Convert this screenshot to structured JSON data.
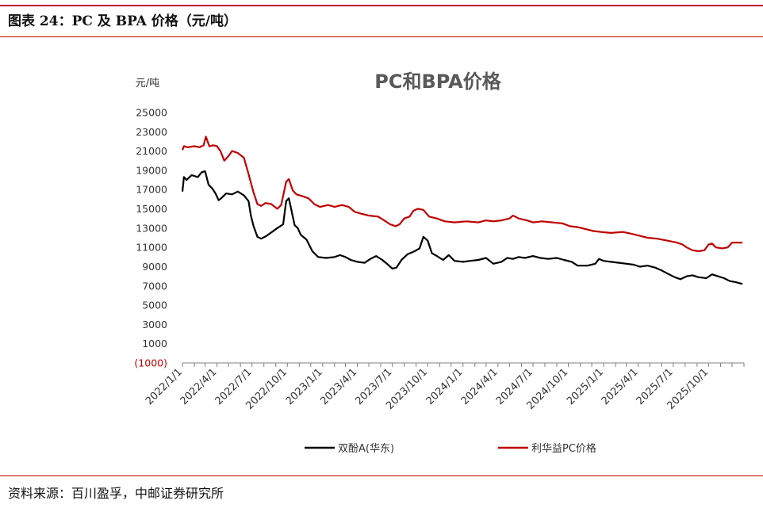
{
  "figure": {
    "title": "图表 24：PC 及 BPA 价格（元/吨）",
    "source": "资料来源：百川盈孚，中邮证券研究所"
  },
  "colors": {
    "bpa": "#000000",
    "pc": "#c00000",
    "accent": "#c00000"
  },
  "chart_data": {
    "type": "line",
    "title": "PC和BPA价格",
    "ylabel": "元/吨",
    "xlabel": "",
    "ylim": [
      -1000,
      25000
    ],
    "yticks": [
      {
        "v": 25000,
        "label": "25000"
      },
      {
        "v": 23000,
        "label": "23000"
      },
      {
        "v": 21000,
        "label": "21000"
      },
      {
        "v": 19000,
        "label": "19000"
      },
      {
        "v": 17000,
        "label": "17000"
      },
      {
        "v": 15000,
        "label": "15000"
      },
      {
        "v": 13000,
        "label": "13000"
      },
      {
        "v": 11000,
        "label": "11000"
      },
      {
        "v": 9000,
        "label": "9000"
      },
      {
        "v": 7000,
        "label": "7000"
      },
      {
        "v": 5000,
        "label": "5000"
      },
      {
        "v": 3000,
        "label": "3000"
      },
      {
        "v": 1000,
        "label": "1000"
      },
      {
        "v": -1000,
        "label": "(1000)"
      }
    ],
    "xlim": [
      "2022-01-01",
      "2026-01-01"
    ],
    "xticks": [
      "2022/1/1",
      "2022/4/1",
      "2022/7/1",
      "2022/10/1",
      "2023/1/1",
      "2023/4/1",
      "2023/7/1",
      "2023/10/1",
      "2024/1/1",
      "2024/4/1",
      "2024/7/1",
      "2024/10/1",
      "2025/1/1",
      "2025/4/1",
      "2025/7/1",
      "2025/10/1"
    ],
    "legend": "bottom",
    "grid": false,
    "series": [
      {
        "name": "双酚A(华东)",
        "key": "bpa",
        "points": [
          [
            "2022-01-01",
            16800
          ],
          [
            "2022-01-05",
            18300
          ],
          [
            "2022-01-12",
            18000
          ],
          [
            "2022-01-25",
            18500
          ],
          [
            "2022-02-10",
            18300
          ],
          [
            "2022-02-20",
            18800
          ],
          [
            "2022-03-01",
            18900
          ],
          [
            "2022-03-10",
            17500
          ],
          [
            "2022-03-20",
            17100
          ],
          [
            "2022-03-28",
            16600
          ],
          [
            "2022-04-05",
            15900
          ],
          [
            "2022-04-12",
            16100
          ],
          [
            "2022-04-25",
            16600
          ],
          [
            "2022-05-10",
            16500
          ],
          [
            "2022-05-25",
            16800
          ],
          [
            "2022-06-10",
            16400
          ],
          [
            "2022-06-22",
            15800
          ],
          [
            "2022-06-28",
            14300
          ],
          [
            "2022-07-05",
            13200
          ],
          [
            "2022-07-15",
            12100
          ],
          [
            "2022-07-25",
            11900
          ],
          [
            "2022-08-08",
            12200
          ],
          [
            "2022-08-22",
            12600
          ],
          [
            "2022-09-05",
            13000
          ],
          [
            "2022-09-20",
            13400
          ],
          [
            "2022-09-28",
            15800
          ],
          [
            "2022-10-05",
            16100
          ],
          [
            "2022-10-12",
            14800
          ],
          [
            "2022-10-20",
            13300
          ],
          [
            "2022-10-28",
            13000
          ],
          [
            "2022-11-05",
            12300
          ],
          [
            "2022-11-20",
            11800
          ],
          [
            "2022-12-05",
            10600
          ],
          [
            "2022-12-20",
            10000
          ],
          [
            "2023-01-10",
            9900
          ],
          [
            "2023-02-01",
            10000
          ],
          [
            "2023-02-15",
            10200
          ],
          [
            "2023-03-01",
            10000
          ],
          [
            "2023-03-15",
            9700
          ],
          [
            "2023-04-01",
            9500
          ],
          [
            "2023-04-20",
            9400
          ],
          [
            "2023-05-05",
            9800
          ],
          [
            "2023-05-20",
            10100
          ],
          [
            "2023-06-05",
            9700
          ],
          [
            "2023-06-20",
            9200
          ],
          [
            "2023-07-01",
            8800
          ],
          [
            "2023-07-12",
            8900
          ],
          [
            "2023-07-25",
            9700
          ],
          [
            "2023-08-10",
            10300
          ],
          [
            "2023-08-28",
            10600
          ],
          [
            "2023-09-10",
            10900
          ],
          [
            "2023-09-20",
            12100
          ],
          [
            "2023-10-01",
            11700
          ],
          [
            "2023-10-12",
            10400
          ],
          [
            "2023-10-25",
            10100
          ],
          [
            "2023-11-10",
            9700
          ],
          [
            "2023-11-25",
            10200
          ],
          [
            "2023-12-10",
            9600
          ],
          [
            "2024-01-01",
            9500
          ],
          [
            "2024-01-20",
            9600
          ],
          [
            "2024-02-10",
            9700
          ],
          [
            "2024-03-01",
            9900
          ],
          [
            "2024-03-20",
            9300
          ],
          [
            "2024-04-10",
            9500
          ],
          [
            "2024-04-25",
            9900
          ],
          [
            "2024-05-10",
            9800
          ],
          [
            "2024-05-25",
            10000
          ],
          [
            "2024-06-10",
            9900
          ],
          [
            "2024-07-01",
            10100
          ],
          [
            "2024-07-20",
            9900
          ],
          [
            "2024-08-10",
            9800
          ],
          [
            "2024-09-01",
            9900
          ],
          [
            "2024-09-20",
            9700
          ],
          [
            "2024-10-10",
            9500
          ],
          [
            "2024-10-25",
            9100
          ],
          [
            "2024-11-20",
            9100
          ],
          [
            "2024-12-10",
            9300
          ],
          [
            "2024-12-20",
            9800
          ],
          [
            "2025-01-01",
            9600
          ],
          [
            "2025-01-20",
            9500
          ],
          [
            "2025-02-10",
            9400
          ],
          [
            "2025-03-01",
            9300
          ],
          [
            "2025-03-20",
            9200
          ],
          [
            "2025-04-05",
            9000
          ],
          [
            "2025-04-25",
            9100
          ],
          [
            "2025-05-15",
            8900
          ],
          [
            "2025-06-01",
            8600
          ],
          [
            "2025-06-20",
            8200
          ],
          [
            "2025-07-05",
            7900
          ],
          [
            "2025-07-20",
            7700
          ],
          [
            "2025-08-05",
            8000
          ],
          [
            "2025-08-20",
            8100
          ],
          [
            "2025-09-05",
            7900
          ],
          [
            "2025-09-25",
            7800
          ],
          [
            "2025-10-10",
            8200
          ],
          [
            "2025-10-25",
            8000
          ],
          [
            "2025-11-10",
            7800
          ],
          [
            "2025-11-25",
            7500
          ],
          [
            "2025-12-10",
            7400
          ],
          [
            "2025-12-28",
            7200
          ]
        ]
      },
      {
        "name": "利华益PC价格",
        "key": "pc",
        "points": [
          [
            "2022-01-01",
            21100
          ],
          [
            "2022-01-05",
            21500
          ],
          [
            "2022-01-15",
            21400
          ],
          [
            "2022-02-01",
            21500
          ],
          [
            "2022-02-15",
            21400
          ],
          [
            "2022-02-25",
            21600
          ],
          [
            "2022-03-03",
            22500
          ],
          [
            "2022-03-12",
            21500
          ],
          [
            "2022-03-22",
            21600
          ],
          [
            "2022-04-01",
            21500
          ],
          [
            "2022-04-10",
            21000
          ],
          [
            "2022-04-20",
            20000
          ],
          [
            "2022-05-01",
            20500
          ],
          [
            "2022-05-10",
            21000
          ],
          [
            "2022-05-25",
            20800
          ],
          [
            "2022-06-10",
            20300
          ],
          [
            "2022-06-20",
            18900
          ],
          [
            "2022-07-05",
            16700
          ],
          [
            "2022-07-15",
            15500
          ],
          [
            "2022-07-25",
            15300
          ],
          [
            "2022-08-05",
            15600
          ],
          [
            "2022-08-20",
            15500
          ],
          [
            "2022-09-05",
            15000
          ],
          [
            "2022-09-15",
            15400
          ],
          [
            "2022-09-28",
            17800
          ],
          [
            "2022-10-05",
            18100
          ],
          [
            "2022-10-15",
            16900
          ],
          [
            "2022-10-25",
            16500
          ],
          [
            "2022-11-10",
            16300
          ],
          [
            "2022-11-25",
            16100
          ],
          [
            "2022-12-10",
            15500
          ],
          [
            "2022-12-25",
            15200
          ],
          [
            "2023-01-15",
            15400
          ],
          [
            "2023-02-01",
            15200
          ],
          [
            "2023-02-20",
            15400
          ],
          [
            "2023-03-10",
            15200
          ],
          [
            "2023-03-25",
            14700
          ],
          [
            "2023-04-10",
            14500
          ],
          [
            "2023-05-01",
            14300
          ],
          [
            "2023-05-25",
            14200
          ],
          [
            "2023-06-10",
            13800
          ],
          [
            "2023-06-25",
            13400
          ],
          [
            "2023-07-10",
            13200
          ],
          [
            "2023-07-20",
            13400
          ],
          [
            "2023-08-01",
            14000
          ],
          [
            "2023-08-15",
            14200
          ],
          [
            "2023-08-25",
            14800
          ],
          [
            "2023-09-05",
            15000
          ],
          [
            "2023-09-20",
            14900
          ],
          [
            "2023-10-05",
            14200
          ],
          [
            "2023-10-25",
            14000
          ],
          [
            "2023-11-15",
            13700
          ],
          [
            "2023-12-10",
            13600
          ],
          [
            "2024-01-10",
            13700
          ],
          [
            "2024-02-10",
            13600
          ],
          [
            "2024-03-01",
            13800
          ],
          [
            "2024-03-20",
            13700
          ],
          [
            "2024-04-10",
            13800
          ],
          [
            "2024-05-01",
            14000
          ],
          [
            "2024-05-10",
            14300
          ],
          [
            "2024-05-25",
            14000
          ],
          [
            "2024-06-15",
            13800
          ],
          [
            "2024-07-01",
            13600
          ],
          [
            "2024-07-25",
            13700
          ],
          [
            "2024-08-20",
            13600
          ],
          [
            "2024-09-15",
            13500
          ],
          [
            "2024-10-05",
            13200
          ],
          [
            "2024-10-25",
            13100
          ],
          [
            "2024-11-15",
            12900
          ],
          [
            "2024-12-05",
            12700
          ],
          [
            "2024-12-25",
            12600
          ],
          [
            "2025-01-20",
            12500
          ],
          [
            "2025-02-20",
            12600
          ],
          [
            "2025-03-15",
            12400
          ],
          [
            "2025-04-05",
            12200
          ],
          [
            "2025-04-25",
            12000
          ],
          [
            "2025-05-20",
            11900
          ],
          [
            "2025-06-15",
            11700
          ],
          [
            "2025-07-10",
            11500
          ],
          [
            "2025-07-25",
            11300
          ],
          [
            "2025-08-05",
            11000
          ],
          [
            "2025-08-20",
            10700
          ],
          [
            "2025-09-05",
            10600
          ],
          [
            "2025-09-20",
            10700
          ],
          [
            "2025-10-01",
            11300
          ],
          [
            "2025-10-10",
            11400
          ],
          [
            "2025-10-20",
            11000
          ],
          [
            "2025-11-05",
            10900
          ],
          [
            "2025-11-20",
            11000
          ],
          [
            "2025-12-01",
            11500
          ],
          [
            "2025-12-15",
            11500
          ],
          [
            "2025-12-28",
            11500
          ]
        ]
      }
    ]
  }
}
